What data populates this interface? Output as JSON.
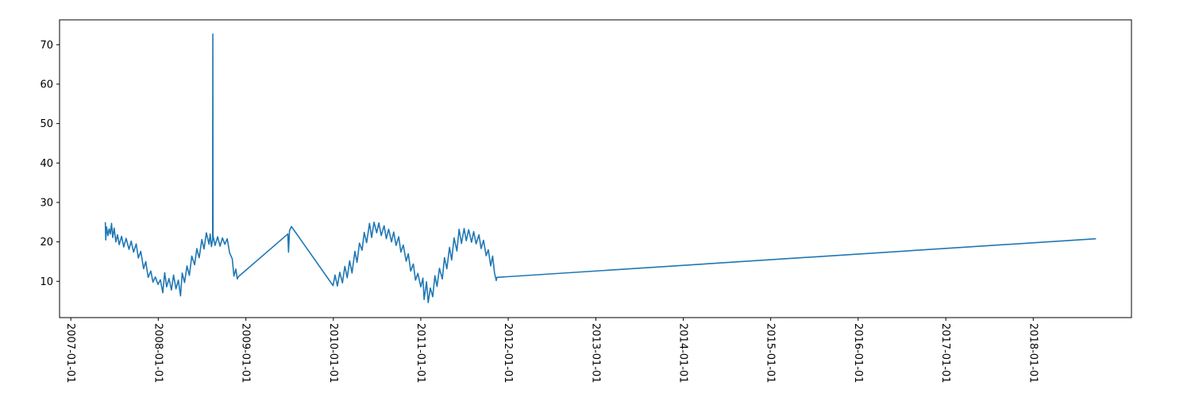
{
  "chart_data": {
    "type": "line",
    "title": "",
    "xlabel": "",
    "ylabel": "",
    "x_axis": "date",
    "xlim": [
      "2006-11-15",
      "2019-02-15"
    ],
    "ylim": [
      0.8,
      76.3
    ],
    "grid": false,
    "legend": null,
    "x_ticks": [
      "2007-01-01",
      "2008-01-01",
      "2009-01-01",
      "2010-01-01",
      "2011-01-01",
      "2012-01-01",
      "2013-01-01",
      "2014-01-01",
      "2015-01-01",
      "2016-01-01",
      "2017-01-01",
      "2018-01-01"
    ],
    "y_ticks": [
      10,
      20,
      30,
      40,
      50,
      60,
      70
    ],
    "series": [
      {
        "color": "#1f77b4",
        "points": [
          [
            "2007-05-25",
            25.0
          ],
          [
            "2007-05-27",
            20.5
          ],
          [
            "2007-05-30",
            23.8
          ],
          [
            "2007-06-05",
            21.6
          ],
          [
            "2007-06-10",
            23.3
          ],
          [
            "2007-06-15",
            22.0
          ],
          [
            "2007-06-20",
            24.7
          ],
          [
            "2007-06-25",
            21.1
          ],
          [
            "2007-07-01",
            23.5
          ],
          [
            "2007-07-08",
            20.0
          ],
          [
            "2007-07-15",
            21.8
          ],
          [
            "2007-07-22",
            19.3
          ],
          [
            "2007-08-01",
            21.4
          ],
          [
            "2007-08-10",
            18.7
          ],
          [
            "2007-08-20",
            20.9
          ],
          [
            "2007-09-01",
            18.1
          ],
          [
            "2007-09-10",
            20.2
          ],
          [
            "2007-09-20",
            17.4
          ],
          [
            "2007-10-01",
            19.5
          ],
          [
            "2007-10-10",
            15.9
          ],
          [
            "2007-10-20",
            17.6
          ],
          [
            "2007-11-01",
            13.2
          ],
          [
            "2007-11-10",
            15.0
          ],
          [
            "2007-11-20",
            11.0
          ],
          [
            "2007-12-01",
            12.6
          ],
          [
            "2007-12-10",
            9.8
          ],
          [
            "2007-12-20",
            11.1
          ],
          [
            "2007-12-31",
            9.2
          ],
          [
            "2008-01-10",
            10.4
          ],
          [
            "2008-01-20",
            7.1
          ],
          [
            "2008-01-28",
            12.2
          ],
          [
            "2008-02-05",
            8.6
          ],
          [
            "2008-02-15",
            10.7
          ],
          [
            "2008-02-25",
            7.8
          ],
          [
            "2008-03-05",
            11.6
          ],
          [
            "2008-03-15",
            8.1
          ],
          [
            "2008-03-25",
            10.3
          ],
          [
            "2008-04-03",
            6.3
          ],
          [
            "2008-04-10",
            12.1
          ],
          [
            "2008-04-20",
            9.7
          ],
          [
            "2008-04-30",
            13.9
          ],
          [
            "2008-05-10",
            11.5
          ],
          [
            "2008-05-20",
            16.4
          ],
          [
            "2008-06-01",
            14.2
          ],
          [
            "2008-06-10",
            18.3
          ],
          [
            "2008-06-20",
            16.0
          ],
          [
            "2008-07-01",
            20.6
          ],
          [
            "2008-07-10",
            18.2
          ],
          [
            "2008-07-20",
            22.3
          ],
          [
            "2008-07-31",
            19.4
          ],
          [
            "2008-08-05",
            22.0
          ],
          [
            "2008-08-10",
            18.8
          ],
          [
            "2008-08-15",
            20.5
          ],
          [
            "2008-08-16",
            72.7
          ],
          [
            "2008-08-17",
            21.5
          ],
          [
            "2008-08-25",
            19.1
          ],
          [
            "2008-09-05",
            21.3
          ],
          [
            "2008-09-15",
            18.9
          ],
          [
            "2008-09-25",
            21.0
          ],
          [
            "2008-10-05",
            19.4
          ],
          [
            "2008-10-15",
            20.8
          ],
          [
            "2008-10-25",
            17.2
          ],
          [
            "2008-11-05",
            15.7
          ],
          [
            "2008-11-12",
            11.3
          ],
          [
            "2008-11-20",
            13.1
          ],
          [
            "2008-11-26",
            10.6
          ],
          [
            "2008-12-01",
            11.2
          ],
          [
            "2009-06-25",
            22.0
          ],
          [
            "2009-06-28",
            17.4
          ],
          [
            "2009-07-02",
            22.8
          ],
          [
            "2009-07-10",
            23.9
          ],
          [
            "2009-12-31",
            8.9
          ],
          [
            "2010-01-08",
            11.6
          ],
          [
            "2010-01-18",
            8.8
          ],
          [
            "2010-01-28",
            12.3
          ],
          [
            "2010-02-08",
            9.6
          ],
          [
            "2010-02-18",
            13.8
          ],
          [
            "2010-02-28",
            10.9
          ],
          [
            "2010-03-10",
            15.2
          ],
          [
            "2010-03-20",
            12.1
          ],
          [
            "2010-04-01",
            17.6
          ],
          [
            "2010-04-10",
            14.8
          ],
          [
            "2010-04-20",
            19.7
          ],
          [
            "2010-05-01",
            17.9
          ],
          [
            "2010-05-10",
            22.4
          ],
          [
            "2010-05-20",
            19.8
          ],
          [
            "2010-06-01",
            24.7
          ],
          [
            "2010-06-10",
            21.1
          ],
          [
            "2010-06-20",
            25.0
          ],
          [
            "2010-07-01",
            22.3
          ],
          [
            "2010-07-10",
            24.8
          ],
          [
            "2010-07-20",
            21.6
          ],
          [
            "2010-08-01",
            24.1
          ],
          [
            "2010-08-10",
            20.8
          ],
          [
            "2010-08-20",
            23.2
          ],
          [
            "2010-09-01",
            20.0
          ],
          [
            "2010-09-10",
            22.5
          ],
          [
            "2010-09-20",
            19.1
          ],
          [
            "2010-10-01",
            21.3
          ],
          [
            "2010-10-10",
            17.4
          ],
          [
            "2010-10-20",
            19.2
          ],
          [
            "2010-11-01",
            15.1
          ],
          [
            "2010-11-10",
            17.0
          ],
          [
            "2010-11-20",
            12.6
          ],
          [
            "2010-12-01",
            14.4
          ],
          [
            "2010-12-10",
            10.3
          ],
          [
            "2010-12-20",
            12.0
          ],
          [
            "2011-01-01",
            8.6
          ],
          [
            "2011-01-10",
            10.8
          ],
          [
            "2011-01-15",
            5.4
          ],
          [
            "2011-01-25",
            9.9
          ],
          [
            "2011-02-01",
            4.6
          ],
          [
            "2011-02-10",
            8.3
          ],
          [
            "2011-02-20",
            6.1
          ],
          [
            "2011-03-01",
            11.4
          ],
          [
            "2011-03-10",
            8.7
          ],
          [
            "2011-03-20",
            13.3
          ],
          [
            "2011-04-01",
            10.6
          ],
          [
            "2011-04-10",
            16.0
          ],
          [
            "2011-04-20",
            13.2
          ],
          [
            "2011-05-01",
            18.6
          ],
          [
            "2011-05-10",
            15.4
          ],
          [
            "2011-05-20",
            21.0
          ],
          [
            "2011-06-01",
            17.7
          ],
          [
            "2011-06-10",
            23.2
          ],
          [
            "2011-06-20",
            19.6
          ],
          [
            "2011-07-01",
            23.4
          ],
          [
            "2011-07-10",
            20.3
          ],
          [
            "2011-07-20",
            23.1
          ],
          [
            "2011-08-01",
            19.9
          ],
          [
            "2011-08-10",
            22.6
          ],
          [
            "2011-08-20",
            19.5
          ],
          [
            "2011-09-01",
            21.8
          ],
          [
            "2011-09-10",
            18.3
          ],
          [
            "2011-09-20",
            20.4
          ],
          [
            "2011-10-01",
            16.5
          ],
          [
            "2011-10-10",
            18.0
          ],
          [
            "2011-10-20",
            13.9
          ],
          [
            "2011-10-28",
            16.4
          ],
          [
            "2011-11-05",
            12.1
          ],
          [
            "2011-11-12",
            10.2
          ],
          [
            "2011-11-15",
            11.0
          ],
          [
            "2018-09-20",
            20.8
          ]
        ]
      }
    ]
  }
}
